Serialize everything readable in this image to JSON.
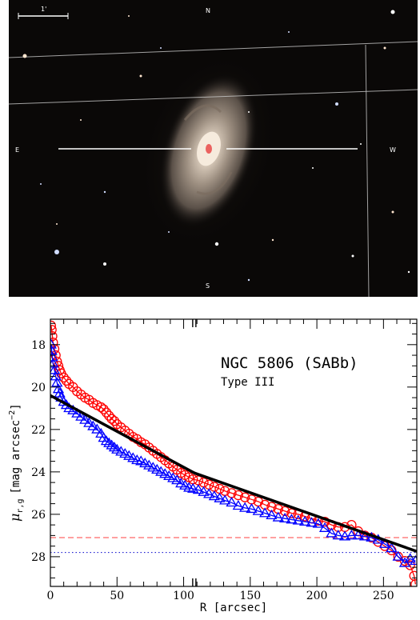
{
  "image": {
    "description_icon": "galaxy-image-icon",
    "marks": [
      "N",
      "E",
      "W",
      "S",
      "1'"
    ],
    "colors": {
      "sky": "#0a0807",
      "grid": "#c8c8c8",
      "galaxy_core": "#f2e6d8",
      "galaxy_disk": "#8a7d70"
    }
  },
  "chart_data": {
    "type": "scatter",
    "title": "NGC 5806 (SABb)",
    "subtitle": "Type III",
    "xlabel": "R [arcsec]",
    "ylabel": "μ_{r,g} [mag arcsec^{-2}]",
    "ylabel_main": "μ",
    "ylabel_sub": "r,g",
    "ylabel_unit": "[mag arcsec",
    "ylabel_exp": "−2",
    "ylabel_close": "]",
    "xlim": [
      0,
      275
    ],
    "ylim": [
      29.4,
      16.8
    ],
    "y_inverted": true,
    "xticks": [
      0,
      50,
      100,
      150,
      200,
      250
    ],
    "yticks": [
      18,
      20,
      22,
      24,
      26,
      28
    ],
    "xtick_labels": [
      "0",
      "50",
      "100",
      "150",
      "200",
      "250"
    ],
    "ytick_labels": [
      "18",
      "20",
      "22",
      "24",
      "26",
      "28"
    ],
    "axis_break_x": 108,
    "series": [
      {
        "name": "r",
        "color": "#ff0000",
        "marker": "circle",
        "points": [
          [
            0.5,
            17.1
          ],
          [
            1,
            17.3
          ],
          [
            1.5,
            17.6
          ],
          [
            2,
            17.9
          ],
          [
            3,
            18.2
          ],
          [
            4,
            18.5
          ],
          [
            5,
            18.8
          ],
          [
            6,
            19.0
          ],
          [
            7,
            19.2
          ],
          [
            8,
            19.35
          ],
          [
            10,
            19.55
          ],
          [
            12,
            19.7
          ],
          [
            14,
            19.85
          ],
          [
            17,
            20.0
          ],
          [
            20,
            20.2
          ],
          [
            23,
            20.35
          ],
          [
            26,
            20.5
          ],
          [
            29,
            20.6
          ],
          [
            32,
            20.75
          ],
          [
            35,
            20.85
          ],
          [
            38,
            20.95
          ],
          [
            40,
            21.05
          ],
          [
            42,
            21.2
          ],
          [
            44,
            21.35
          ],
          [
            46,
            21.5
          ],
          [
            48,
            21.6
          ],
          [
            50,
            21.75
          ],
          [
            53,
            21.9
          ],
          [
            56,
            22.05
          ],
          [
            59,
            22.2
          ],
          [
            62,
            22.35
          ],
          [
            65,
            22.45
          ],
          [
            68,
            22.6
          ],
          [
            71,
            22.7
          ],
          [
            74,
            22.85
          ],
          [
            77,
            23.0
          ],
          [
            80,
            23.15
          ],
          [
            83,
            23.3
          ],
          [
            86,
            23.45
          ],
          [
            89,
            23.6
          ],
          [
            92,
            23.75
          ],
          [
            95,
            23.9
          ],
          [
            98,
            24.05
          ],
          [
            101,
            24.15
          ],
          [
            104,
            24.25
          ],
          [
            107,
            24.35
          ],
          [
            111,
            24.4
          ],
          [
            115,
            24.5
          ],
          [
            119,
            24.6
          ],
          [
            123,
            24.7
          ],
          [
            127,
            24.8
          ],
          [
            131,
            24.9
          ],
          [
            136,
            25.0
          ],
          [
            141,
            25.1
          ],
          [
            146,
            25.2
          ],
          [
            151,
            25.3
          ],
          [
            156,
            25.4
          ],
          [
            161,
            25.55
          ],
          [
            166,
            25.65
          ],
          [
            171,
            25.75
          ],
          [
            176,
            25.85
          ],
          [
            181,
            25.95
          ],
          [
            186,
            26.0
          ],
          [
            191,
            26.1
          ],
          [
            196,
            26.2
          ],
          [
            201,
            26.3
          ],
          [
            206,
            26.35
          ],
          [
            211,
            26.5
          ],
          [
            216,
            26.6
          ],
          [
            221,
            26.6
          ],
          [
            226,
            26.5
          ],
          [
            231,
            26.8
          ],
          [
            236,
            27.0
          ],
          [
            241,
            27.1
          ],
          [
            246,
            27.3
          ],
          [
            251,
            27.5
          ],
          [
            256,
            27.7
          ],
          [
            261,
            28.0
          ],
          [
            266,
            28.2
          ],
          [
            270,
            28.4
          ],
          [
            273,
            28.9
          ],
          [
            274,
            29.3
          ]
        ]
      },
      {
        "name": "g",
        "color": "#0000ff",
        "marker": "triangle",
        "points": [
          [
            0.5,
            18.0
          ],
          [
            1,
            18.3
          ],
          [
            1.5,
            18.6
          ],
          [
            2,
            18.9
          ],
          [
            3,
            19.2
          ],
          [
            4,
            19.5
          ],
          [
            5,
            19.8
          ],
          [
            6,
            20.1
          ],
          [
            7,
            20.3
          ],
          [
            8,
            20.5
          ],
          [
            10,
            20.7
          ],
          [
            12,
            20.85
          ],
          [
            14,
            21.0
          ],
          [
            17,
            21.1
          ],
          [
            20,
            21.25
          ],
          [
            23,
            21.4
          ],
          [
            26,
            21.55
          ],
          [
            29,
            21.7
          ],
          [
            32,
            21.85
          ],
          [
            35,
            22.0
          ],
          [
            38,
            22.2
          ],
          [
            40,
            22.4
          ],
          [
            42,
            22.55
          ],
          [
            44,
            22.65
          ],
          [
            46,
            22.75
          ],
          [
            48,
            22.85
          ],
          [
            50,
            22.95
          ],
          [
            53,
            23.05
          ],
          [
            56,
            23.15
          ],
          [
            59,
            23.25
          ],
          [
            62,
            23.35
          ],
          [
            65,
            23.45
          ],
          [
            68,
            23.5
          ],
          [
            71,
            23.6
          ],
          [
            74,
            23.7
          ],
          [
            77,
            23.8
          ],
          [
            80,
            23.9
          ],
          [
            83,
            24.0
          ],
          [
            86,
            24.1
          ],
          [
            89,
            24.2
          ],
          [
            92,
            24.3
          ],
          [
            95,
            24.4
          ],
          [
            98,
            24.55
          ],
          [
            101,
            24.65
          ],
          [
            104,
            24.75
          ],
          [
            107,
            24.8
          ],
          [
            111,
            24.85
          ],
          [
            115,
            24.95
          ],
          [
            119,
            25.05
          ],
          [
            123,
            25.15
          ],
          [
            127,
            25.25
          ],
          [
            131,
            25.35
          ],
          [
            136,
            25.45
          ],
          [
            141,
            25.6
          ],
          [
            146,
            25.7
          ],
          [
            151,
            25.75
          ],
          [
            156,
            25.85
          ],
          [
            161,
            25.95
          ],
          [
            166,
            26.05
          ],
          [
            171,
            26.15
          ],
          [
            176,
            26.2
          ],
          [
            181,
            26.25
          ],
          [
            186,
            26.3
          ],
          [
            191,
            26.35
          ],
          [
            196,
            26.4
          ],
          [
            201,
            26.45
          ],
          [
            206,
            26.65
          ],
          [
            211,
            26.9
          ],
          [
            216,
            27.0
          ],
          [
            221,
            27.05
          ],
          [
            226,
            27.0
          ],
          [
            231,
            27.0
          ],
          [
            236,
            27.05
          ],
          [
            241,
            27.1
          ],
          [
            246,
            27.2
          ],
          [
            251,
            27.4
          ],
          [
            256,
            27.6
          ],
          [
            261,
            28.0
          ],
          [
            266,
            28.3
          ],
          [
            270,
            28.1
          ],
          [
            274,
            28.2
          ]
        ]
      }
    ],
    "fit_lines": [
      {
        "name": "inner-fit",
        "color": "#000000",
        "points": [
          [
            0,
            20.4
          ],
          [
            108,
            24.05
          ]
        ]
      },
      {
        "name": "outer-fit",
        "color": "#000000",
        "points": [
          [
            108,
            24.05
          ],
          [
            275,
            27.75
          ]
        ]
      }
    ],
    "hlines": [
      {
        "name": "r-limit",
        "y": 27.1,
        "color": "#ff4040",
        "style": "dashed"
      },
      {
        "name": "g-limit",
        "y": 27.8,
        "color": "#0000cc",
        "style": "dotted"
      }
    ]
  }
}
